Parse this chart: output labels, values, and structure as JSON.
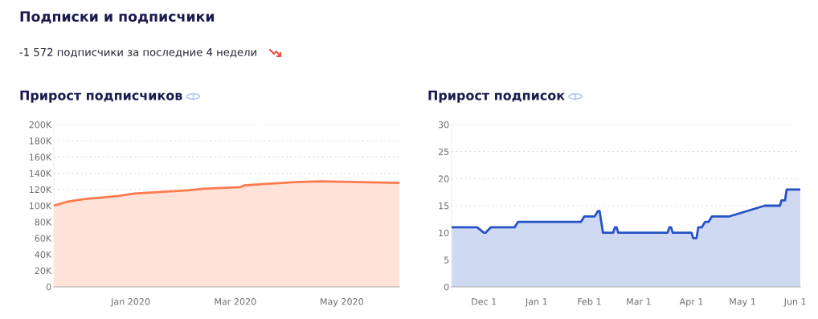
{
  "chart_data": [
    {
      "type": "area",
      "title": "Прирост подписчиков",
      "annotations": [
        "Подписки и подписчики",
        "-1 572 подписчики за последние 4 недели"
      ],
      "x": [
        "2019-11-18",
        "2019-11-26",
        "2019-12-05",
        "2019-12-25",
        "2020-01-03",
        "2020-01-18",
        "2020-02-03",
        "2020-02-12",
        "2020-03-04",
        "2020-03-06",
        "2020-03-20",
        "2020-03-28",
        "2020-04-04",
        "2020-04-19",
        "2020-05-11",
        "2020-06-03"
      ],
      "series": [
        {
          "color": "#ff7b4f",
          "values": [
            100000,
            105000,
            108000,
            112000,
            115000,
            117000,
            119000,
            121000,
            123000,
            125000,
            127000,
            128000,
            129000,
            130000,
            129000,
            128000
          ]
        }
      ],
      "xlim": [
        "2019-11-18",
        "2020-06-03"
      ],
      "xticks": [
        {
          "value": "2020-01-01",
          "label": "Jan 2020"
        },
        {
          "value": "2020-03-01",
          "label": "Mar 2020"
        },
        {
          "value": "2020-05-01",
          "label": "May 2020"
        }
      ],
      "ylim": [
        0,
        200000
      ],
      "yticks": [
        {
          "value": 0,
          "label": "0"
        },
        {
          "value": 20000,
          "label": "20K"
        },
        {
          "value": 40000,
          "label": "40K"
        },
        {
          "value": 60000,
          "label": "60K"
        },
        {
          "value": 80000,
          "label": "80K"
        },
        {
          "value": 100000,
          "label": "100K"
        },
        {
          "value": 120000,
          "label": "120K"
        },
        {
          "value": 140000,
          "label": "140K"
        },
        {
          "value": 160000,
          "label": "160K"
        },
        {
          "value": 180000,
          "label": "180K"
        },
        {
          "value": 200000,
          "label": "200K"
        }
      ],
      "grid": "y",
      "marker": "none",
      "line_style": "solid"
    },
    {
      "type": "area",
      "title": "Прирост подписок",
      "x": [
        "2019-11-12",
        "2019-11-27",
        "2019-12-01",
        "2019-12-02",
        "2019-12-05",
        "2019-12-19",
        "2019-12-21",
        "2020-01-27",
        "2020-01-29",
        "2020-02-04",
        "2020-02-06",
        "2020-02-07",
        "2020-02-09",
        "2020-02-15",
        "2020-02-16",
        "2020-02-17",
        "2020-02-18",
        "2020-03-18",
        "2020-03-19",
        "2020-03-20",
        "2020-03-21",
        "2020-04-01",
        "2020-04-02",
        "2020-04-04",
        "2020-04-05",
        "2020-04-07",
        "2020-04-09",
        "2020-04-11",
        "2020-04-13",
        "2020-04-23",
        "2020-05-14",
        "2020-05-23",
        "2020-05-24",
        "2020-05-26",
        "2020-05-27",
        "2020-06-04"
      ],
      "series": [
        {
          "color": "#2552c6",
          "values": [
            11,
            11,
            10,
            10,
            11,
            11,
            12,
            12,
            13,
            13,
            14,
            14,
            10,
            10,
            11,
            11,
            10,
            10,
            11,
            11,
            10,
            10,
            9,
            9,
            11,
            11,
            12,
            12,
            13,
            13,
            15,
            15,
            16,
            16,
            18,
            18
          ]
        }
      ],
      "xlim": [
        "2019-11-12",
        "2020-06-04"
      ],
      "xticks": [
        {
          "value": "2019-12-01",
          "label": "Dec 1"
        },
        {
          "value": "2020-01-01",
          "label": "Jan 1"
        },
        {
          "value": "2020-02-01",
          "label": "Feb 1"
        },
        {
          "value": "2020-03-01",
          "label": "Mar 1"
        },
        {
          "value": "2020-04-01",
          "label": "Apr 1"
        },
        {
          "value": "2020-05-01",
          "label": "May 1"
        },
        {
          "value": "2020-06-01",
          "label": "Jun 1"
        }
      ],
      "ylim": [
        0,
        30
      ],
      "yticks": [
        0,
        5,
        10,
        15,
        20,
        25,
        30
      ],
      "grid": "y",
      "marker": "none",
      "line_style": "solid"
    }
  ]
}
